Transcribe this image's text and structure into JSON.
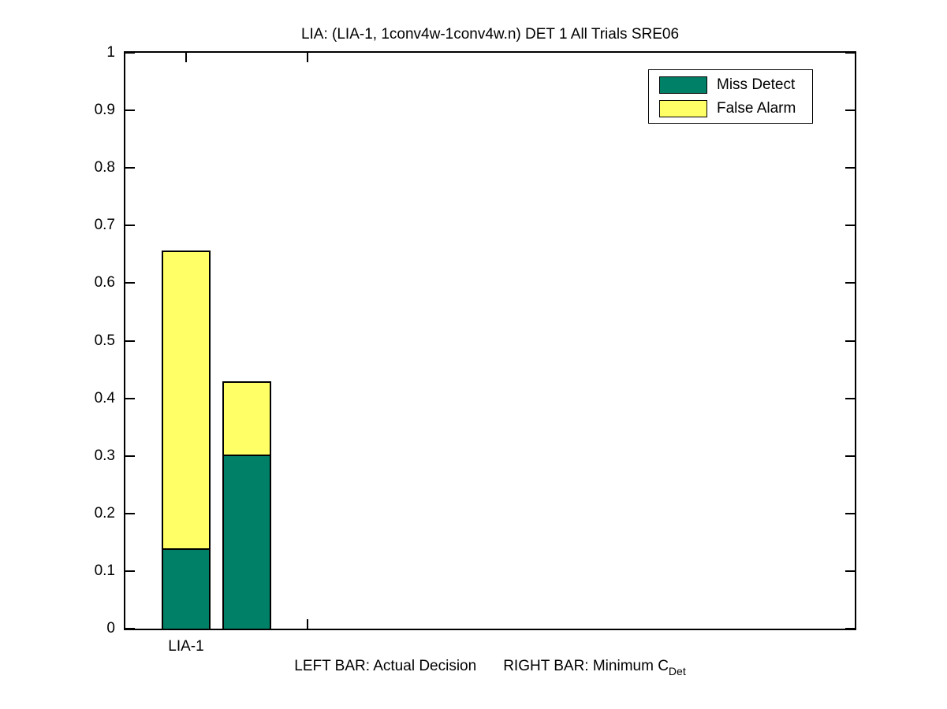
{
  "chart_data": {
    "type": "bar",
    "stacked": true,
    "title": "LIA: (LIA-1, 1conv4w-1conv4w.n) DET 1 All Trials SRE06",
    "xlabel": "LEFT BAR: Actual Decision      RIGHT BAR: Minimum C_Det",
    "ylabel": "",
    "xlim": [
      0.5,
      6.5
    ],
    "ylim": [
      0,
      1
    ],
    "grid": false,
    "background": "#ffffff",
    "axis_color": "#000000",
    "colors": {
      "miss_detect": "#008066",
      "false_alarm": "#ffff66"
    },
    "yticks": {
      "values": [
        0,
        0.1,
        0.2,
        0.3,
        0.4,
        0.5,
        0.6,
        0.7,
        0.8,
        0.9,
        1
      ],
      "labels": [
        "0",
        "0.1",
        "0.2",
        "0.3",
        "0.4",
        "0.5",
        "0.6",
        "0.7",
        "0.8",
        "0.9",
        "1"
      ]
    },
    "xticks": {
      "values": [
        1,
        2
      ],
      "labels": [
        "LIA-1",
        ""
      ]
    },
    "categories": [
      "LIA-1"
    ],
    "bars": [
      {
        "id": "actual-decision",
        "label": "Actual Decision",
        "x": 1,
        "width": 0.4,
        "miss_detect": 0.139,
        "false_alarm": 0.517,
        "total": 0.656
      },
      {
        "id": "minimum-cdet",
        "label": "Minimum C_Det",
        "x": 1.5,
        "width": 0.4,
        "miss_detect": 0.302,
        "false_alarm": 0.127,
        "total": 0.429
      }
    ],
    "legend": {
      "position": "top-right",
      "items": [
        {
          "label": "Miss Detect",
          "color": "#008066"
        },
        {
          "label": "False Alarm",
          "color": "#ffff66"
        }
      ]
    }
  },
  "figure": {
    "title": "LIA: (LIA-1, 1conv4w-1conv4w.n) DET 1 All Trials SRE06",
    "footer": {
      "left_bar_text": "LEFT BAR: Actual Decision",
      "right_bar_text": "RIGHT BAR: Minimum C",
      "subscript": "Det"
    }
  }
}
